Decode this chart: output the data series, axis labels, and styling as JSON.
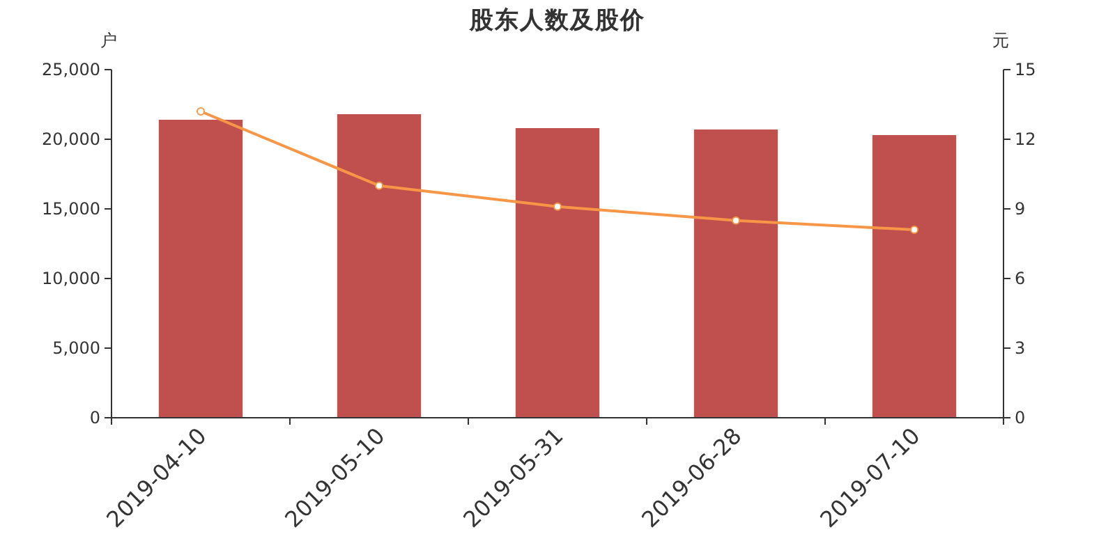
{
  "chart_data": {
    "type": "bar",
    "title": "股东人数及股价",
    "ylabel": "户",
    "y2label": "元",
    "categories": [
      "2019-04-10",
      "2019-05-10",
      "2019-05-31",
      "2019-06-28",
      "2019-07-10"
    ],
    "series": [
      {
        "color": "#c0504d",
        "values": [
          21400,
          21800,
          20800,
          20700,
          20300
        ]
      },
      {
        "type": "line",
        "axis": "y2",
        "color": "#f79646",
        "marker": "circle",
        "values": [
          13.2,
          10.0,
          9.1,
          8.5,
          8.1
        ]
      }
    ],
    "ylim": [
      0,
      25000
    ],
    "yticks": [
      {
        "value": 0,
        "label": "0"
      },
      {
        "value": 5000,
        "label": "5,000"
      },
      {
        "value": 10000,
        "label": "10,000"
      },
      {
        "value": 15000,
        "label": "15,000"
      },
      {
        "value": 20000,
        "label": "20,000"
      },
      {
        "value": 25000,
        "label": "25,000"
      }
    ],
    "y2lim": [
      0,
      15
    ],
    "y2ticks": [
      0,
      3,
      6,
      9,
      12,
      15
    ],
    "grid": false
  }
}
